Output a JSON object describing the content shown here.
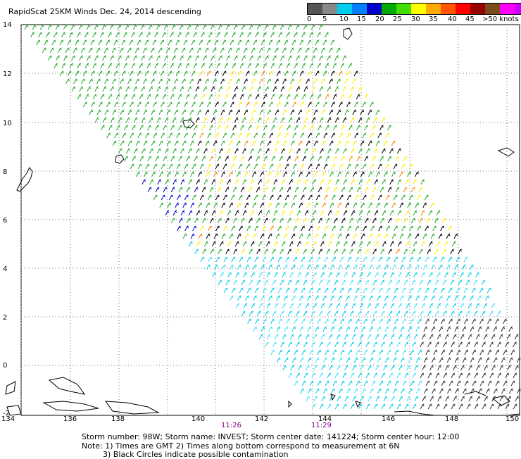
{
  "title": "RapidScat 25KM Winds Dec. 24, 2014 descending",
  "legend": {
    "colors": [
      "#555555",
      "#888888",
      "#00ccee",
      "#0080ff",
      "#0000cc",
      "#00aa00",
      "#44dd00",
      "#ffff00",
      "#ffaa00",
      "#ff5500",
      "#ff0000",
      "#990000",
      "#7a4a1a",
      "#ff00ff",
      "#cc00ff",
      "#8800aa"
    ],
    "labels": [
      "0",
      "5",
      "10",
      "15",
      "20",
      "25",
      "30",
      "35",
      "40",
      "45",
      ">50 knots"
    ]
  },
  "axes": {
    "x_ticks": [
      "134",
      "136",
      "138",
      "140",
      "142",
      "144",
      "146",
      "148",
      "150"
    ],
    "y_ticks": [
      "14",
      "12",
      "10",
      "8",
      "6",
      "4",
      "2",
      "0",
      "-2"
    ]
  },
  "times": [
    "11:26",
    "11:29"
  ],
  "footer": {
    "line1": "Storm number: 98W;  Storm name: INVEST;  Storm center date: 141224;  Storm center hour: 12:00",
    "line2": "Note: 1) Times are GMT  2) Times along bottom correspond to measurement at 6N",
    "line3": "3) Black Circles indicate possible contamination"
  }
}
